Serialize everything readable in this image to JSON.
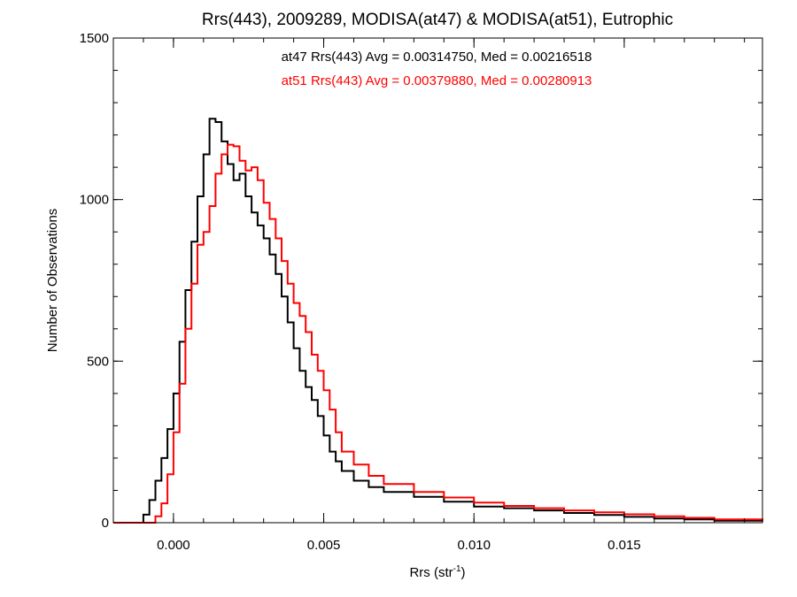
{
  "chart_data": {
    "type": "line",
    "title": "Rrs(443), 2009289, MODISA(at47) & MODISA(at51), Eutrophic",
    "xlabel": "Rrs (str",
    "xlabel_sup": "-1",
    "xlabel_end": ")",
    "ylabel": "Number of Observations",
    "xlim": [
      -0.002,
      0.0196
    ],
    "ylim": [
      0,
      1500
    ],
    "xticks": [
      0.0,
      0.005,
      0.01,
      0.015
    ],
    "xtick_labels": [
      "0.000",
      "0.005",
      "0.010",
      "0.015"
    ],
    "yticks": [
      0,
      500,
      1000,
      1500
    ],
    "ytick_labels": [
      "0",
      "500",
      "1000",
      "1500"
    ],
    "annotations": [
      {
        "text": "at47 Rrs(443) Avg = 0.00314750, Med = 0.00216518",
        "color": "#000000"
      },
      {
        "text": "at51 Rrs(443) Avg = 0.00379880, Med = 0.00280913",
        "color": "#ff0000"
      }
    ],
    "grid": false,
    "series": [
      {
        "color": "#000000",
        "style": "step",
        "points": [
          [
            -0.002,
            0
          ],
          [
            -0.0012,
            0
          ],
          [
            -0.001,
            25
          ],
          [
            -0.0008,
            70
          ],
          [
            -0.0006,
            130
          ],
          [
            -0.0004,
            200
          ],
          [
            -0.0002,
            290
          ],
          [
            0.0,
            400
          ],
          [
            0.0002,
            560
          ],
          [
            0.0004,
            720
          ],
          [
            0.0006,
            870
          ],
          [
            0.0008,
            1010
          ],
          [
            0.001,
            1140
          ],
          [
            0.0012,
            1250
          ],
          [
            0.0014,
            1240
          ],
          [
            0.0016,
            1180
          ],
          [
            0.0018,
            1110
          ],
          [
            0.002,
            1060
          ],
          [
            0.0022,
            1080
          ],
          [
            0.0024,
            1010
          ],
          [
            0.0026,
            960
          ],
          [
            0.0028,
            920
          ],
          [
            0.003,
            880
          ],
          [
            0.0032,
            830
          ],
          [
            0.0034,
            770
          ],
          [
            0.0036,
            700
          ],
          [
            0.0038,
            620
          ],
          [
            0.004,
            540
          ],
          [
            0.0042,
            470
          ],
          [
            0.0044,
            420
          ],
          [
            0.0046,
            380
          ],
          [
            0.0048,
            330
          ],
          [
            0.005,
            270
          ],
          [
            0.0052,
            220
          ],
          [
            0.0054,
            190
          ],
          [
            0.0056,
            160
          ],
          [
            0.006,
            130
          ],
          [
            0.0065,
            110
          ],
          [
            0.007,
            95
          ],
          [
            0.008,
            80
          ],
          [
            0.009,
            65
          ],
          [
            0.01,
            50
          ],
          [
            0.011,
            45
          ],
          [
            0.012,
            38
          ],
          [
            0.013,
            30
          ],
          [
            0.014,
            24
          ],
          [
            0.015,
            18
          ],
          [
            0.016,
            13
          ],
          [
            0.017,
            10
          ],
          [
            0.018,
            6
          ],
          [
            0.0196,
            4
          ]
        ]
      },
      {
        "color": "#ff0000",
        "style": "step",
        "points": [
          [
            -0.002,
            0
          ],
          [
            -0.0008,
            0
          ],
          [
            -0.0006,
            20
          ],
          [
            -0.0004,
            60
          ],
          [
            -0.0002,
            150
          ],
          [
            0.0,
            280
          ],
          [
            0.0002,
            430
          ],
          [
            0.0004,
            600
          ],
          [
            0.0006,
            740
          ],
          [
            0.0008,
            860
          ],
          [
            0.001,
            900
          ],
          [
            0.0012,
            980
          ],
          [
            0.0014,
            1080
          ],
          [
            0.0016,
            1140
          ],
          [
            0.0018,
            1170
          ],
          [
            0.002,
            1165
          ],
          [
            0.0022,
            1120
          ],
          [
            0.0024,
            1090
          ],
          [
            0.0026,
            1100
          ],
          [
            0.0028,
            1060
          ],
          [
            0.003,
            990
          ],
          [
            0.0032,
            940
          ],
          [
            0.0034,
            880
          ],
          [
            0.0036,
            810
          ],
          [
            0.0038,
            740
          ],
          [
            0.004,
            680
          ],
          [
            0.0042,
            640
          ],
          [
            0.0044,
            590
          ],
          [
            0.0046,
            520
          ],
          [
            0.0048,
            470
          ],
          [
            0.005,
            410
          ],
          [
            0.0052,
            350
          ],
          [
            0.0054,
            280
          ],
          [
            0.0056,
            220
          ],
          [
            0.006,
            180
          ],
          [
            0.0065,
            145
          ],
          [
            0.007,
            120
          ],
          [
            0.008,
            95
          ],
          [
            0.009,
            78
          ],
          [
            0.01,
            62
          ],
          [
            0.011,
            52
          ],
          [
            0.012,
            45
          ],
          [
            0.013,
            38
          ],
          [
            0.014,
            32
          ],
          [
            0.015,
            26
          ],
          [
            0.016,
            20
          ],
          [
            0.017,
            15
          ],
          [
            0.018,
            10
          ],
          [
            0.0196,
            6
          ]
        ]
      }
    ]
  }
}
